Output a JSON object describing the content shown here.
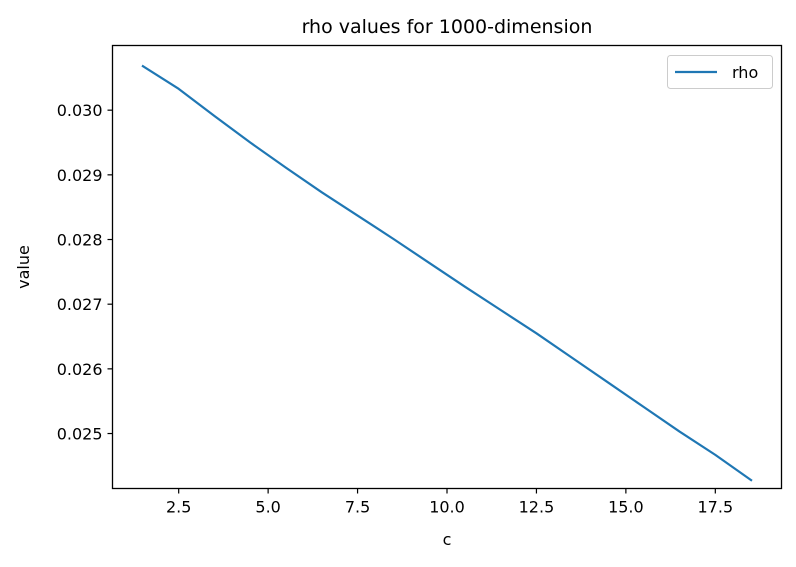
{
  "chart_data": {
    "type": "line",
    "title": "rho values for 1000-dimension",
    "xlabel": "c",
    "ylabel": "value",
    "xlim": [
      0.65,
      19.35
    ],
    "ylim": [
      0.02415,
      0.031
    ],
    "x_ticks": [
      2.5,
      5.0,
      7.5,
      10.0,
      12.5,
      15.0,
      17.5
    ],
    "x_tick_labels": [
      "2.5",
      "5.0",
      "7.5",
      "10.0",
      "12.5",
      "15.0",
      "17.5"
    ],
    "y_ticks": [
      0.025,
      0.026,
      0.027,
      0.028,
      0.029,
      0.03
    ],
    "y_tick_labels": [
      "0.025",
      "0.026",
      "0.027",
      "0.028",
      "0.029",
      "0.030"
    ],
    "grid": false,
    "legend": {
      "placement": "top-right"
    },
    "series": [
      {
        "name": "rho",
        "color": "#1f77b4",
        "x": [
          1.5,
          2.5,
          3.5,
          4.5,
          5.5,
          6.5,
          7.5,
          8.5,
          9.5,
          10.5,
          11.5,
          12.5,
          13.5,
          14.5,
          15.5,
          16.5,
          17.5,
          18.5
        ],
        "y": [
          0.03068,
          0.03033,
          0.02991,
          0.0295,
          0.02911,
          0.02873,
          0.02837,
          0.02801,
          0.02764,
          0.02727,
          0.02691,
          0.02655,
          0.02617,
          0.02579,
          0.02541,
          0.02503,
          0.02467,
          0.02428
        ]
      }
    ]
  }
}
